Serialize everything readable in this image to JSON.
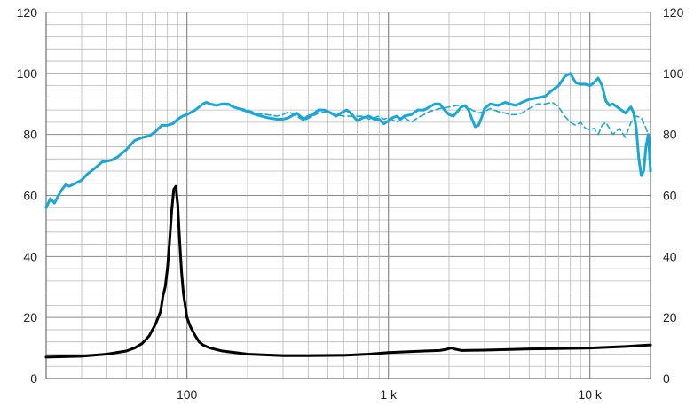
{
  "colors": {
    "background": "#ffffff",
    "plot_background": "#ffffff",
    "grid_minor": "#b8b8b8",
    "grid_major": "#8a8a8a",
    "axis": "#6e6e6e",
    "text": "#222222",
    "spl": "#1aa6d6",
    "impedance": "#000000"
  },
  "chart_data": {
    "type": "line",
    "title": "",
    "xlabel": "",
    "ylabel": "",
    "xscale": "log",
    "xlim": [
      20,
      20000
    ],
    "ylim": [
      0,
      120
    ],
    "grid": true,
    "legend": "none",
    "y_ticks": [
      "0",
      "20",
      "40",
      "60",
      "80",
      "100",
      "120"
    ],
    "y_ticks_right": [
      "0",
      "20",
      "40",
      "60",
      "80",
      "100",
      "120"
    ],
    "x_ticks": [
      {
        "value": 100,
        "label": "100"
      },
      {
        "value": 1000,
        "label": "1 k"
      },
      {
        "value": 10000,
        "label": "10 k"
      }
    ],
    "series": [
      {
        "style": "solid",
        "color": "#1aa6d6",
        "width": 3,
        "points": [
          [
            20,
            56
          ],
          [
            21,
            59
          ],
          [
            22,
            57.5
          ],
          [
            23,
            60
          ],
          [
            24,
            62
          ],
          [
            25,
            63.5
          ],
          [
            26,
            63
          ],
          [
            27,
            63.5
          ],
          [
            28,
            64
          ],
          [
            30,
            65
          ],
          [
            32,
            67
          ],
          [
            35,
            69
          ],
          [
            38,
            71
          ],
          [
            42,
            71.5
          ],
          [
            45,
            72.5
          ],
          [
            50,
            75
          ],
          [
            55,
            78
          ],
          [
            60,
            79
          ],
          [
            65,
            79.5
          ],
          [
            70,
            81
          ],
          [
            75,
            83
          ],
          [
            80,
            83
          ],
          [
            85,
            83.5
          ],
          [
            90,
            85
          ],
          [
            95,
            86
          ],
          [
            100,
            86.5
          ],
          [
            110,
            88
          ],
          [
            120,
            90
          ],
          [
            125,
            90.5
          ],
          [
            130,
            90
          ],
          [
            140,
            89.5
          ],
          [
            150,
            90
          ],
          [
            160,
            90
          ],
          [
            170,
            89
          ],
          [
            180,
            88.5
          ],
          [
            200,
            87.5
          ],
          [
            220,
            86.5
          ],
          [
            250,
            85.5
          ],
          [
            280,
            85
          ],
          [
            300,
            85
          ],
          [
            320,
            85.5
          ],
          [
            350,
            87
          ],
          [
            380,
            85
          ],
          [
            400,
            86
          ],
          [
            420,
            86.5
          ],
          [
            450,
            88
          ],
          [
            480,
            88
          ],
          [
            500,
            87.5
          ],
          [
            520,
            87
          ],
          [
            550,
            86
          ],
          [
            580,
            87
          ],
          [
            620,
            88
          ],
          [
            650,
            87
          ],
          [
            700,
            84.5
          ],
          [
            750,
            85.5
          ],
          [
            800,
            86
          ],
          [
            850,
            85
          ],
          [
            900,
            85
          ],
          [
            950,
            83.5
          ],
          [
            1000,
            84.5
          ],
          [
            1050,
            85.5
          ],
          [
            1100,
            86
          ],
          [
            1150,
            85
          ],
          [
            1200,
            86
          ],
          [
            1300,
            86.5
          ],
          [
            1400,
            88
          ],
          [
            1500,
            88
          ],
          [
            1600,
            89
          ],
          [
            1700,
            90
          ],
          [
            1800,
            90
          ],
          [
            1900,
            88
          ],
          [
            2000,
            86.5
          ],
          [
            2100,
            86
          ],
          [
            2200,
            87.5
          ],
          [
            2300,
            89
          ],
          [
            2400,
            89.5
          ],
          [
            2500,
            88
          ],
          [
            2600,
            85
          ],
          [
            2700,
            82.5
          ],
          [
            2800,
            83
          ],
          [
            2900,
            85.5
          ],
          [
            3000,
            88.5
          ],
          [
            3200,
            90
          ],
          [
            3500,
            89.5
          ],
          [
            3800,
            90.5
          ],
          [
            4000,
            90
          ],
          [
            4300,
            89.5
          ],
          [
            4600,
            90.5
          ],
          [
            5000,
            91.5
          ],
          [
            5500,
            92
          ],
          [
            6000,
            92.5
          ],
          [
            6500,
            94.5
          ],
          [
            7000,
            96
          ],
          [
            7500,
            99
          ],
          [
            8000,
            100
          ],
          [
            8500,
            97
          ],
          [
            9000,
            96.5
          ],
          [
            9500,
            96.5
          ],
          [
            10000,
            96
          ],
          [
            10500,
            97
          ],
          [
            11000,
            98.5
          ],
          [
            11500,
            96
          ],
          [
            12000,
            91
          ],
          [
            12500,
            89.5
          ],
          [
            13000,
            90
          ],
          [
            14000,
            88.5
          ],
          [
            15000,
            87
          ],
          [
            16000,
            89
          ],
          [
            16500,
            87
          ],
          [
            17000,
            82
          ],
          [
            17500,
            72
          ],
          [
            18000,
            66.5
          ],
          [
            18500,
            68
          ],
          [
            19000,
            76
          ],
          [
            19500,
            80
          ],
          [
            20000,
            68
          ]
        ]
      },
      {
        "style": "dashed",
        "color": "#1aa6d6",
        "width": 1.6,
        "points": [
          [
            150,
            90
          ],
          [
            170,
            89
          ],
          [
            200,
            88
          ],
          [
            220,
            87
          ],
          [
            250,
            86.5
          ],
          [
            280,
            86
          ],
          [
            300,
            86.5
          ],
          [
            320,
            87.5
          ],
          [
            350,
            86
          ],
          [
            380,
            84.5
          ],
          [
            420,
            86
          ],
          [
            450,
            87
          ],
          [
            500,
            87.5
          ],
          [
            550,
            86.5
          ],
          [
            600,
            86
          ],
          [
            650,
            86
          ],
          [
            700,
            86
          ],
          [
            750,
            86
          ],
          [
            800,
            85
          ],
          [
            850,
            85.5
          ],
          [
            900,
            86
          ],
          [
            950,
            85
          ],
          [
            1000,
            85.5
          ],
          [
            1100,
            84
          ],
          [
            1200,
            85.5
          ],
          [
            1300,
            84
          ],
          [
            1400,
            85.5
          ],
          [
            1500,
            86.5
          ],
          [
            1600,
            87.5
          ],
          [
            1800,
            88.5
          ],
          [
            2000,
            89
          ],
          [
            2200,
            89.5
          ],
          [
            2400,
            89.5
          ],
          [
            2600,
            88
          ],
          [
            2800,
            87
          ],
          [
            3000,
            87.5
          ],
          [
            3200,
            88.5
          ],
          [
            3500,
            87.5
          ],
          [
            3800,
            87
          ],
          [
            4000,
            86.5
          ],
          [
            4300,
            86.5
          ],
          [
            4600,
            87
          ],
          [
            5000,
            88.5
          ],
          [
            5500,
            90
          ],
          [
            6000,
            90
          ],
          [
            6500,
            90.5
          ],
          [
            7000,
            89
          ],
          [
            7500,
            86
          ],
          [
            8000,
            84
          ],
          [
            8500,
            83
          ],
          [
            9000,
            84
          ],
          [
            9500,
            82
          ],
          [
            10000,
            81.5
          ],
          [
            10500,
            82
          ],
          [
            11000,
            80
          ],
          [
            11500,
            83
          ],
          [
            12000,
            84
          ],
          [
            12500,
            82
          ],
          [
            13000,
            80
          ],
          [
            14000,
            82
          ],
          [
            15000,
            79
          ],
          [
            16000,
            84
          ],
          [
            17000,
            86
          ],
          [
            18000,
            85.5
          ],
          [
            19000,
            82
          ],
          [
            20000,
            78
          ]
        ]
      },
      {
        "style": "solid",
        "color": "#000000",
        "width": 3,
        "points": [
          [
            20,
            7
          ],
          [
            30,
            7.3
          ],
          [
            40,
            8
          ],
          [
            50,
            9
          ],
          [
            55,
            10
          ],
          [
            60,
            11.5
          ],
          [
            65,
            14
          ],
          [
            70,
            18
          ],
          [
            74,
            22
          ],
          [
            76,
            27
          ],
          [
            78,
            30
          ],
          [
            80,
            36
          ],
          [
            82,
            45
          ],
          [
            84,
            55
          ],
          [
            86,
            62
          ],
          [
            88,
            63
          ],
          [
            90,
            57
          ],
          [
            92,
            45
          ],
          [
            94,
            35
          ],
          [
            96,
            28
          ],
          [
            98,
            24
          ],
          [
            100,
            20
          ],
          [
            104,
            17
          ],
          [
            110,
            14
          ],
          [
            115,
            12
          ],
          [
            120,
            11
          ],
          [
            130,
            10
          ],
          [
            150,
            9
          ],
          [
            200,
            8
          ],
          [
            300,
            7.5
          ],
          [
            400,
            7.5
          ],
          [
            600,
            7.6
          ],
          [
            800,
            8
          ],
          [
            1000,
            8.5
          ],
          [
            1500,
            9
          ],
          [
            1800,
            9.2
          ],
          [
            1950,
            9.6
          ],
          [
            2050,
            10
          ],
          [
            2150,
            9.6
          ],
          [
            2300,
            9.2
          ],
          [
            3000,
            9.3
          ],
          [
            4000,
            9.5
          ],
          [
            5000,
            9.7
          ],
          [
            7000,
            9.8
          ],
          [
            10000,
            10
          ],
          [
            15000,
            10.5
          ],
          [
            20000,
            11
          ]
        ]
      }
    ]
  }
}
